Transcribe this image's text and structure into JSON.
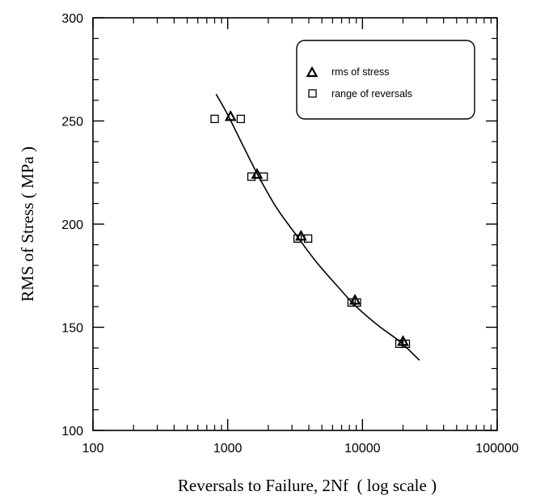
{
  "chart_data": {
    "type": "scatter",
    "xlabel": "Reversals to Failure, 2Nf  ( log scale )",
    "ylabel": "RMS of Stress ( MPa )",
    "x_scale": "log",
    "xlim": [
      100,
      100000
    ],
    "ylim": [
      100,
      300
    ],
    "x_tick_labels": [
      "100",
      "1000",
      "10000",
      "100000"
    ],
    "y_tick_labels": [
      "100",
      "150",
      "200",
      "250",
      "300"
    ],
    "grid": false,
    "legend_position": "top-right",
    "legend": [
      "rms of stress",
      "range of reversals"
    ],
    "series": [
      {
        "name": "rms of stress",
        "marker": "triangle",
        "points": [
          {
            "x": 1050,
            "y": 252
          },
          {
            "x": 1650,
            "y": 224
          },
          {
            "x": 3500,
            "y": 194
          },
          {
            "x": 8800,
            "y": 163
          },
          {
            "x": 20000,
            "y": 143
          }
        ]
      },
      {
        "name": "range of reversals",
        "marker": "square",
        "points": [
          {
            "x": 800,
            "y": 251
          },
          {
            "x": 1250,
            "y": 251
          },
          {
            "x": 1500,
            "y": 223
          },
          {
            "x": 1850,
            "y": 223
          },
          {
            "x": 3300,
            "y": 193
          },
          {
            "x": 3950,
            "y": 193
          },
          {
            "x": 8300,
            "y": 162
          },
          {
            "x": 9100,
            "y": 162
          },
          {
            "x": 18800,
            "y": 142
          },
          {
            "x": 21000,
            "y": 142
          }
        ]
      }
    ],
    "fit_curve": {
      "points": [
        {
          "x": 820,
          "y": 263
        },
        {
          "x": 1000,
          "y": 253
        },
        {
          "x": 1300,
          "y": 238
        },
        {
          "x": 1700,
          "y": 223
        },
        {
          "x": 2300,
          "y": 208
        },
        {
          "x": 3200,
          "y": 195
        },
        {
          "x": 4500,
          "y": 182
        },
        {
          "x": 6500,
          "y": 170
        },
        {
          "x": 9000,
          "y": 160
        },
        {
          "x": 13000,
          "y": 151
        },
        {
          "x": 19000,
          "y": 143
        },
        {
          "x": 26500,
          "y": 134
        }
      ]
    }
  }
}
